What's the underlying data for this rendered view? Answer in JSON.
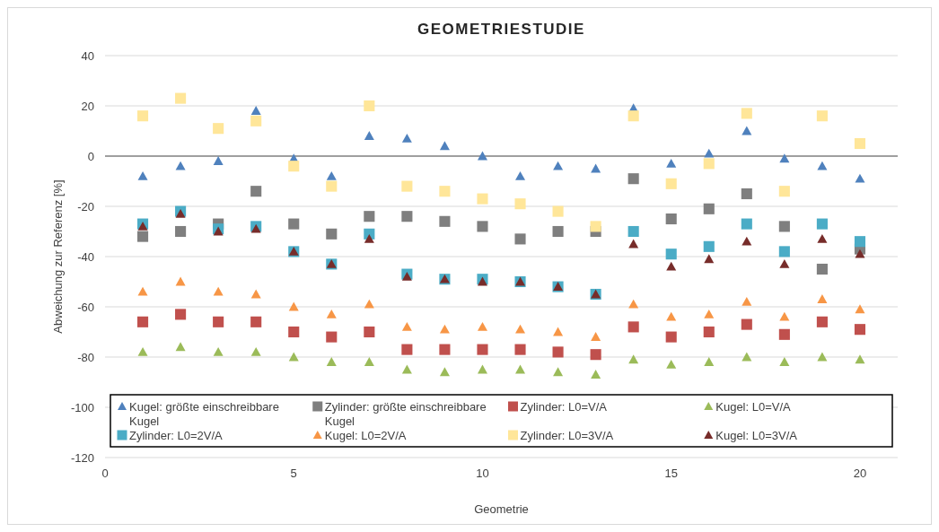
{
  "chart_data": {
    "type": "scatter",
    "title": "GEOMETRIESTUDIE",
    "xlabel": "Geometrie",
    "ylabel": "Abweichung zur Referenz [%]",
    "x": [
      1,
      2,
      3,
      4,
      5,
      6,
      7,
      8,
      9,
      10,
      11,
      12,
      13,
      14,
      15,
      16,
      17,
      18,
      19,
      20
    ],
    "xlim": [
      0,
      21
    ],
    "xticks": [
      0,
      5,
      10,
      15,
      20
    ],
    "ylim": [
      -120,
      40
    ],
    "yticks": [
      -120,
      -100,
      -80,
      -60,
      -40,
      -20,
      0,
      20,
      40
    ],
    "grid": "y",
    "legend": "bottom",
    "ref_lines": [
      {
        "axis": "y",
        "value": 0,
        "color": "#868686"
      }
    ],
    "series": [
      {
        "name": "Kugel: größte einschreibbare Kugel",
        "color": "#4f81bd",
        "marker": "triangle",
        "values": [
          -8,
          -4,
          -2,
          18,
          -1,
          -8,
          8,
          7,
          4,
          0,
          -8,
          -4,
          -5,
          19,
          -3,
          1,
          10,
          -1,
          -4,
          -9
        ]
      },
      {
        "name": "Zylinder: größte einschreibbare Kugel",
        "color": "#7f7f7f",
        "marker": "square",
        "values": [
          -32,
          -30,
          -27,
          -14,
          -27,
          -31,
          -24,
          -24,
          -26,
          -28,
          -33,
          -30,
          -30,
          -9,
          -25,
          -21,
          -15,
          -28,
          -45,
          -37
        ]
      },
      {
        "name": "Zylinder: L0=V/A",
        "color": "#c0504d",
        "marker": "square",
        "values": [
          -66,
          -63,
          -66,
          -66,
          -70,
          -72,
          -70,
          -77,
          -77,
          -77,
          -77,
          -78,
          -79,
          -68,
          -72,
          -70,
          -67,
          -71,
          -66,
          -69
        ]
      },
      {
        "name": "Kugel: L0=V/A",
        "color": "#9bbb59",
        "marker": "triangle",
        "values": [
          -78,
          -76,
          -78,
          -78,
          -80,
          -82,
          -82,
          -85,
          -86,
          -85,
          -85,
          -86,
          -87,
          -81,
          -83,
          -82,
          -80,
          -82,
          -80,
          -81
        ]
      },
      {
        "name": "Zylinder: L0=2V/A",
        "color": "#4bacc6",
        "marker": "square",
        "values": [
          -27,
          -22,
          -29,
          -28,
          -38,
          -43,
          -31,
          -47,
          -49,
          -49,
          -50,
          -52,
          -55,
          -30,
          -39,
          -36,
          -27,
          -38,
          -27,
          -34
        ]
      },
      {
        "name": "Kugel: L0=2V/A",
        "color": "#f79646",
        "marker": "triangle",
        "values": [
          -54,
          -50,
          -54,
          -55,
          -60,
          -63,
          -59,
          -68,
          -69,
          -68,
          -69,
          -70,
          -72,
          -59,
          -64,
          -63,
          -58,
          -64,
          -57,
          -61
        ]
      },
      {
        "name": "Zylinder: L0=3V/A",
        "color": "#ffe699",
        "marker": "square",
        "values": [
          16,
          23,
          11,
          14,
          -4,
          -12,
          20,
          -12,
          -14,
          -17,
          -19,
          -22,
          -28,
          16,
          -11,
          -3,
          17,
          -14,
          16,
          5
        ]
      },
      {
        "name": "Kugel: L0=3V/A",
        "color": "#772c2a",
        "marker": "triangle",
        "values": [
          -28,
          -23,
          -30,
          -29,
          -38,
          -43,
          -33,
          -48,
          -49,
          -50,
          -50,
          -52,
          -55,
          -35,
          -44,
          -41,
          -34,
          -43,
          -33,
          -39
        ]
      }
    ]
  }
}
